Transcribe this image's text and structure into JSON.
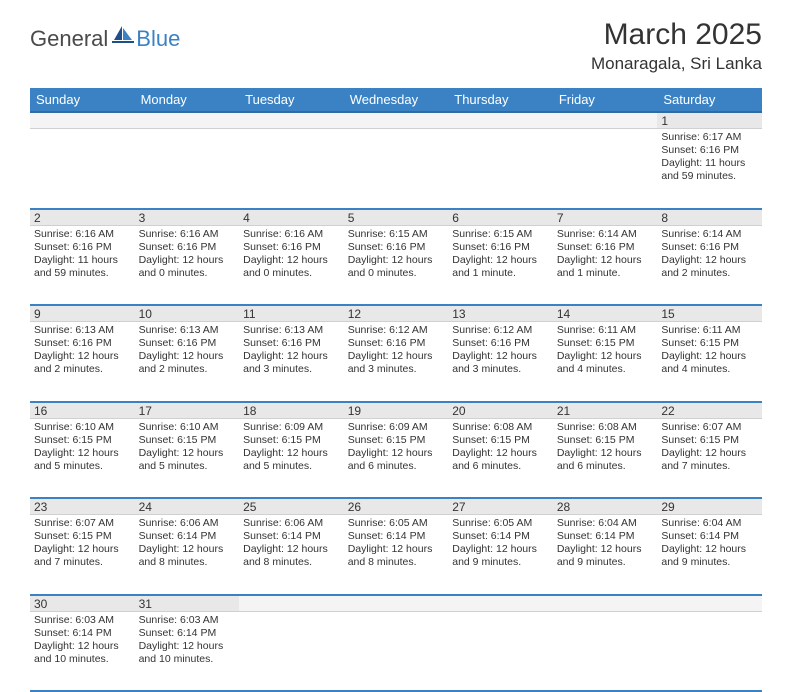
{
  "logo": {
    "part1": "General",
    "part2": "Blue"
  },
  "title": "March 2025",
  "location": "Monaragala, Sri Lanka",
  "colors": {
    "header_bg": "#3b82c4",
    "header_border": "#2f6aa3",
    "row_border": "#3b82c4",
    "daynum_bg": "#e8e8e8",
    "text": "#333333",
    "logo_gray": "#4a4a4a",
    "logo_blue": "#3b82c4",
    "page_bg": "#ffffff"
  },
  "weekdays": [
    "Sunday",
    "Monday",
    "Tuesday",
    "Wednesday",
    "Thursday",
    "Friday",
    "Saturday"
  ],
  "weeks": [
    [
      null,
      null,
      null,
      null,
      null,
      null,
      {
        "n": "1",
        "sr": "Sunrise: 6:17 AM",
        "ss": "Sunset: 6:16 PM",
        "dl": "Daylight: 11 hours and 59 minutes."
      }
    ],
    [
      {
        "n": "2",
        "sr": "Sunrise: 6:16 AM",
        "ss": "Sunset: 6:16 PM",
        "dl": "Daylight: 11 hours and 59 minutes."
      },
      {
        "n": "3",
        "sr": "Sunrise: 6:16 AM",
        "ss": "Sunset: 6:16 PM",
        "dl": "Daylight: 12 hours and 0 minutes."
      },
      {
        "n": "4",
        "sr": "Sunrise: 6:16 AM",
        "ss": "Sunset: 6:16 PM",
        "dl": "Daylight: 12 hours and 0 minutes."
      },
      {
        "n": "5",
        "sr": "Sunrise: 6:15 AM",
        "ss": "Sunset: 6:16 PM",
        "dl": "Daylight: 12 hours and 0 minutes."
      },
      {
        "n": "6",
        "sr": "Sunrise: 6:15 AM",
        "ss": "Sunset: 6:16 PM",
        "dl": "Daylight: 12 hours and 1 minute."
      },
      {
        "n": "7",
        "sr": "Sunrise: 6:14 AM",
        "ss": "Sunset: 6:16 PM",
        "dl": "Daylight: 12 hours and 1 minute."
      },
      {
        "n": "8",
        "sr": "Sunrise: 6:14 AM",
        "ss": "Sunset: 6:16 PM",
        "dl": "Daylight: 12 hours and 2 minutes."
      }
    ],
    [
      {
        "n": "9",
        "sr": "Sunrise: 6:13 AM",
        "ss": "Sunset: 6:16 PM",
        "dl": "Daylight: 12 hours and 2 minutes."
      },
      {
        "n": "10",
        "sr": "Sunrise: 6:13 AM",
        "ss": "Sunset: 6:16 PM",
        "dl": "Daylight: 12 hours and 2 minutes."
      },
      {
        "n": "11",
        "sr": "Sunrise: 6:13 AM",
        "ss": "Sunset: 6:16 PM",
        "dl": "Daylight: 12 hours and 3 minutes."
      },
      {
        "n": "12",
        "sr": "Sunrise: 6:12 AM",
        "ss": "Sunset: 6:16 PM",
        "dl": "Daylight: 12 hours and 3 minutes."
      },
      {
        "n": "13",
        "sr": "Sunrise: 6:12 AM",
        "ss": "Sunset: 6:16 PM",
        "dl": "Daylight: 12 hours and 3 minutes."
      },
      {
        "n": "14",
        "sr": "Sunrise: 6:11 AM",
        "ss": "Sunset: 6:15 PM",
        "dl": "Daylight: 12 hours and 4 minutes."
      },
      {
        "n": "15",
        "sr": "Sunrise: 6:11 AM",
        "ss": "Sunset: 6:15 PM",
        "dl": "Daylight: 12 hours and 4 minutes."
      }
    ],
    [
      {
        "n": "16",
        "sr": "Sunrise: 6:10 AM",
        "ss": "Sunset: 6:15 PM",
        "dl": "Daylight: 12 hours and 5 minutes."
      },
      {
        "n": "17",
        "sr": "Sunrise: 6:10 AM",
        "ss": "Sunset: 6:15 PM",
        "dl": "Daylight: 12 hours and 5 minutes."
      },
      {
        "n": "18",
        "sr": "Sunrise: 6:09 AM",
        "ss": "Sunset: 6:15 PM",
        "dl": "Daylight: 12 hours and 5 minutes."
      },
      {
        "n": "19",
        "sr": "Sunrise: 6:09 AM",
        "ss": "Sunset: 6:15 PM",
        "dl": "Daylight: 12 hours and 6 minutes."
      },
      {
        "n": "20",
        "sr": "Sunrise: 6:08 AM",
        "ss": "Sunset: 6:15 PM",
        "dl": "Daylight: 12 hours and 6 minutes."
      },
      {
        "n": "21",
        "sr": "Sunrise: 6:08 AM",
        "ss": "Sunset: 6:15 PM",
        "dl": "Daylight: 12 hours and 6 minutes."
      },
      {
        "n": "22",
        "sr": "Sunrise: 6:07 AM",
        "ss": "Sunset: 6:15 PM",
        "dl": "Daylight: 12 hours and 7 minutes."
      }
    ],
    [
      {
        "n": "23",
        "sr": "Sunrise: 6:07 AM",
        "ss": "Sunset: 6:15 PM",
        "dl": "Daylight: 12 hours and 7 minutes."
      },
      {
        "n": "24",
        "sr": "Sunrise: 6:06 AM",
        "ss": "Sunset: 6:14 PM",
        "dl": "Daylight: 12 hours and 8 minutes."
      },
      {
        "n": "25",
        "sr": "Sunrise: 6:06 AM",
        "ss": "Sunset: 6:14 PM",
        "dl": "Daylight: 12 hours and 8 minutes."
      },
      {
        "n": "26",
        "sr": "Sunrise: 6:05 AM",
        "ss": "Sunset: 6:14 PM",
        "dl": "Daylight: 12 hours and 8 minutes."
      },
      {
        "n": "27",
        "sr": "Sunrise: 6:05 AM",
        "ss": "Sunset: 6:14 PM",
        "dl": "Daylight: 12 hours and 9 minutes."
      },
      {
        "n": "28",
        "sr": "Sunrise: 6:04 AM",
        "ss": "Sunset: 6:14 PM",
        "dl": "Daylight: 12 hours and 9 minutes."
      },
      {
        "n": "29",
        "sr": "Sunrise: 6:04 AM",
        "ss": "Sunset: 6:14 PM",
        "dl": "Daylight: 12 hours and 9 minutes."
      }
    ],
    [
      {
        "n": "30",
        "sr": "Sunrise: 6:03 AM",
        "ss": "Sunset: 6:14 PM",
        "dl": "Daylight: 12 hours and 10 minutes."
      },
      {
        "n": "31",
        "sr": "Sunrise: 6:03 AM",
        "ss": "Sunset: 6:14 PM",
        "dl": "Daylight: 12 hours and 10 minutes."
      },
      null,
      null,
      null,
      null,
      null
    ]
  ]
}
